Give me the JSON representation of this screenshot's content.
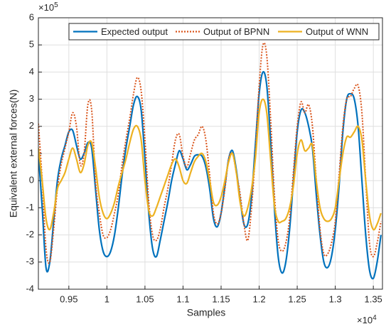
{
  "chart_data": {
    "type": "line",
    "x_label": "Samples",
    "y_label": "Equivalent external forces(N)",
    "x_multiplier": "×10",
    "x_exponent": "4",
    "y_multiplier": "×10",
    "y_exponent": "5",
    "xlim": [
      0.91,
      1.362
    ],
    "ylim": [
      -4,
      6
    ],
    "xticks": [
      0.95,
      1,
      1.05,
      1.1,
      1.15,
      1.2,
      1.25,
      1.3,
      1.35
    ],
    "yticks": [
      -4,
      -3,
      -2,
      -1,
      0,
      1,
      2,
      3,
      4,
      5,
      6
    ],
    "grid": true,
    "legend": "top",
    "x": [
      0.91,
      0.915,
      0.92,
      0.925,
      0.93,
      0.935,
      0.94,
      0.945,
      0.95,
      0.955,
      0.96,
      0.965,
      0.97,
      0.975,
      0.98,
      0.985,
      0.99,
      0.995,
      1.0,
      1.005,
      1.01,
      1.015,
      1.02,
      1.025,
      1.03,
      1.035,
      1.04,
      1.045,
      1.05,
      1.055,
      1.06,
      1.065,
      1.07,
      1.075,
      1.08,
      1.085,
      1.09,
      1.095,
      1.1,
      1.105,
      1.11,
      1.115,
      1.12,
      1.125,
      1.13,
      1.135,
      1.14,
      1.145,
      1.15,
      1.155,
      1.16,
      1.165,
      1.17,
      1.175,
      1.18,
      1.185,
      1.19,
      1.195,
      1.2,
      1.205,
      1.21,
      1.215,
      1.22,
      1.225,
      1.23,
      1.235,
      1.24,
      1.245,
      1.25,
      1.255,
      1.26,
      1.265,
      1.27,
      1.275,
      1.28,
      1.285,
      1.29,
      1.295,
      1.3,
      1.305,
      1.31,
      1.315,
      1.32,
      1.325,
      1.33,
      1.335,
      1.34,
      1.345,
      1.35,
      1.355,
      1.36
    ],
    "series": [
      {
        "name": "Expected output",
        "color": "#0072bd",
        "line_style": "solid",
        "values": [
          1.0,
          -1.0,
          -3.2,
          -3.0,
          -1.5,
          0.0,
          0.8,
          1.3,
          1.8,
          1.85,
          1.3,
          0.8,
          1.0,
          1.4,
          1.2,
          -0.3,
          -1.8,
          -2.6,
          -2.8,
          -2.6,
          -2.0,
          -1.0,
          0.2,
          1.2,
          2.0,
          2.8,
          3.1,
          2.6,
          0.8,
          -1.2,
          -2.5,
          -2.8,
          -2.2,
          -1.5,
          -0.8,
          0.0,
          0.6,
          1.1,
          0.8,
          0.4,
          0.6,
          0.9,
          0.95,
          0.9,
          0.5,
          -0.3,
          -1.4,
          -1.7,
          -1.2,
          -0.2,
          0.8,
          1.1,
          0.4,
          -0.7,
          -1.6,
          -1.6,
          -0.6,
          1.3,
          3.2,
          4.0,
          3.5,
          1.5,
          -1.0,
          -2.8,
          -3.4,
          -3.0,
          -1.8,
          0.0,
          1.8,
          2.6,
          2.5,
          2.0,
          1.2,
          -0.5,
          -2.0,
          -3.0,
          -3.2,
          -2.8,
          -1.8,
          -0.2,
          1.8,
          3.0,
          3.2,
          3.0,
          2.0,
          0.0,
          -2.0,
          -3.3,
          -3.6,
          -3.0,
          -2.0
        ]
      },
      {
        "name": "Output of BPNN",
        "color": "#d95319",
        "line_style": "dotted",
        "values": [
          2.1,
          0.0,
          -2.5,
          -3.0,
          -1.8,
          -0.3,
          0.6,
          1.2,
          1.8,
          2.5,
          2.0,
          0.6,
          1.0,
          2.8,
          2.6,
          0.0,
          -1.2,
          -2.0,
          -2.1,
          -1.8,
          -1.2,
          -0.5,
          0.6,
          1.5,
          2.3,
          3.2,
          3.8,
          3.3,
          1.5,
          -0.8,
          -2.0,
          -2.2,
          -1.8,
          -1.0,
          -0.3,
          0.6,
          1.5,
          1.7,
          0.9,
          0.5,
          1.0,
          1.5,
          1.7,
          2.0,
          1.5,
          0.2,
          -1.2,
          -1.6,
          -1.2,
          -0.3,
          0.8,
          1.0,
          0.3,
          -0.5,
          -1.6,
          -2.2,
          -1.0,
          1.0,
          3.5,
          5.0,
          4.6,
          2.3,
          -0.5,
          -2.2,
          -2.6,
          -2.3,
          -1.4,
          0.3,
          2.0,
          2.9,
          2.5,
          2.8,
          2.0,
          0.0,
          -1.8,
          -2.7,
          -2.7,
          -2.3,
          -1.5,
          0.2,
          2.0,
          3.0,
          3.1,
          3.4,
          3.5,
          2.5,
          0.0,
          -2.3,
          -2.8,
          -2.3,
          -1.5
        ]
      },
      {
        "name": "Output of WNN",
        "color": "#edb120",
        "line_style": "solid",
        "values": [
          1.2,
          0.0,
          -1.4,
          -1.8,
          -1.2,
          -0.3,
          0.0,
          0.3,
          0.8,
          1.2,
          0.8,
          0.3,
          0.6,
          1.3,
          1.4,
          0.5,
          -0.6,
          -1.2,
          -1.4,
          -1.2,
          -0.8,
          -0.2,
          0.3,
          0.8,
          1.4,
          1.9,
          2.0,
          1.5,
          0.0,
          -1.1,
          -1.3,
          -1.0,
          -0.6,
          -0.2,
          0.2,
          0.6,
          0.8,
          0.5,
          0.0,
          -0.1,
          0.3,
          0.7,
          0.9,
          1.0,
          0.7,
          0.0,
          -0.8,
          -0.9,
          -0.6,
          0.0,
          0.7,
          1.0,
          0.3,
          -0.8,
          -1.3,
          -1.0,
          -0.3,
          0.8,
          2.5,
          3.0,
          2.5,
          0.8,
          -0.9,
          -1.5,
          -1.5,
          -1.4,
          -1.0,
          -0.2,
          1.0,
          1.5,
          1.1,
          1.2,
          1.3,
          0.0,
          -1.0,
          -1.4,
          -1.5,
          -1.4,
          -1.0,
          0.0,
          1.0,
          1.6,
          1.6,
          1.8,
          2.0,
          1.5,
          0.0,
          -1.3,
          -1.8,
          -1.6,
          -1.2
        ]
      }
    ]
  }
}
